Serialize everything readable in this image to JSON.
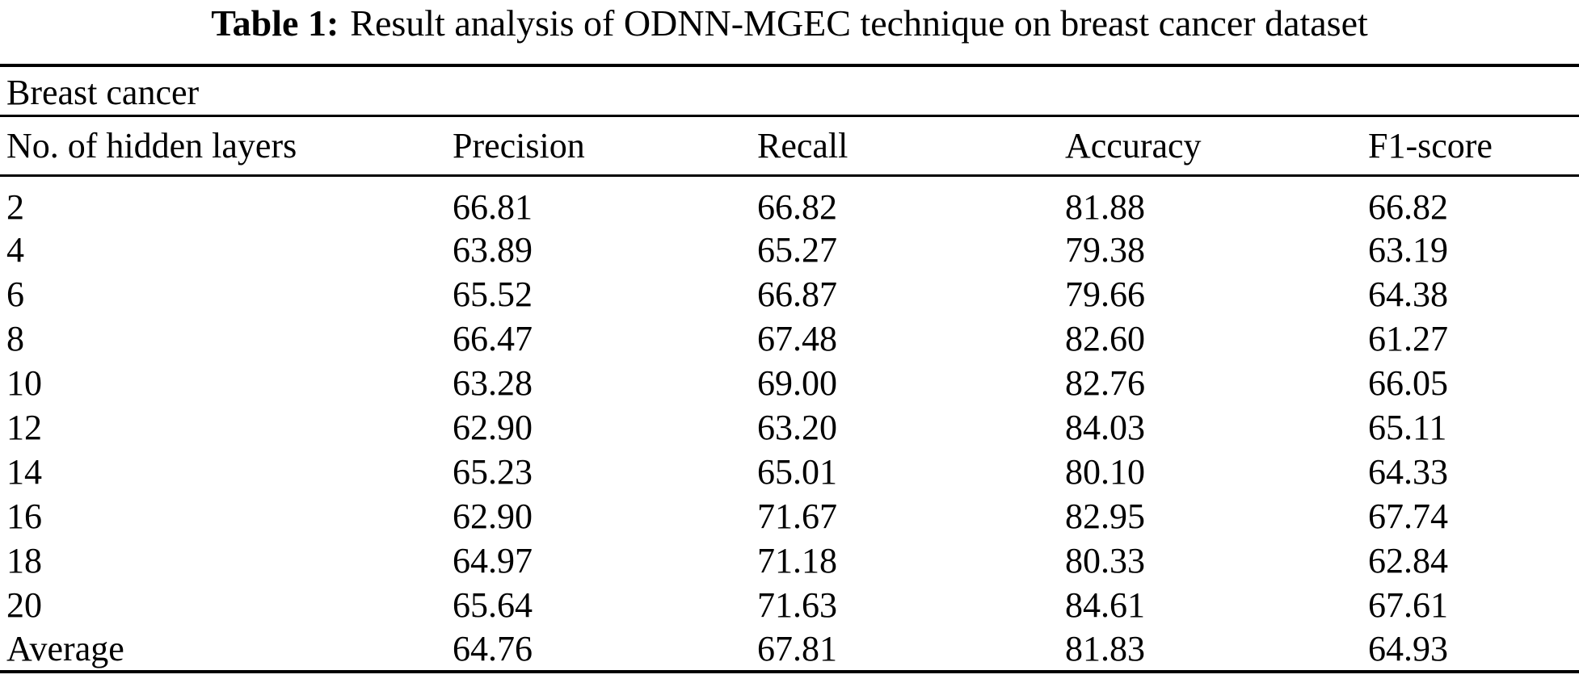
{
  "caption": {
    "label": "Table 1:",
    "text": "Result analysis of ODNN-MGEC technique on breast cancer dataset"
  },
  "table": {
    "group_label": "Breast cancer",
    "columns": [
      "No. of hidden layers",
      "Precision",
      "Recall",
      "Accuracy",
      "F1-score"
    ],
    "rows": [
      [
        "2",
        "66.81",
        "66.82",
        "81.88",
        "66.82"
      ],
      [
        "4",
        "63.89",
        "65.27",
        "79.38",
        "63.19"
      ],
      [
        "6",
        "65.52",
        "66.87",
        "79.66",
        "64.38"
      ],
      [
        "8",
        "66.47",
        "67.48",
        "82.60",
        "61.27"
      ],
      [
        "10",
        "63.28",
        "69.00",
        "82.76",
        "66.05"
      ],
      [
        "12",
        "62.90",
        "63.20",
        "84.03",
        "65.11"
      ],
      [
        "14",
        "65.23",
        "65.01",
        "80.10",
        "64.33"
      ],
      [
        "16",
        "62.90",
        "71.67",
        "82.95",
        "67.74"
      ],
      [
        "18",
        "64.97",
        "71.18",
        "80.33",
        "62.84"
      ],
      [
        "20",
        "65.64",
        "71.63",
        "84.61",
        "67.61"
      ],
      [
        "Average",
        "64.76",
        "67.81",
        "81.83",
        "64.93"
      ]
    ],
    "colors": {
      "text": "#000000",
      "background": "#ffffff",
      "rule": "#000000"
    }
  }
}
